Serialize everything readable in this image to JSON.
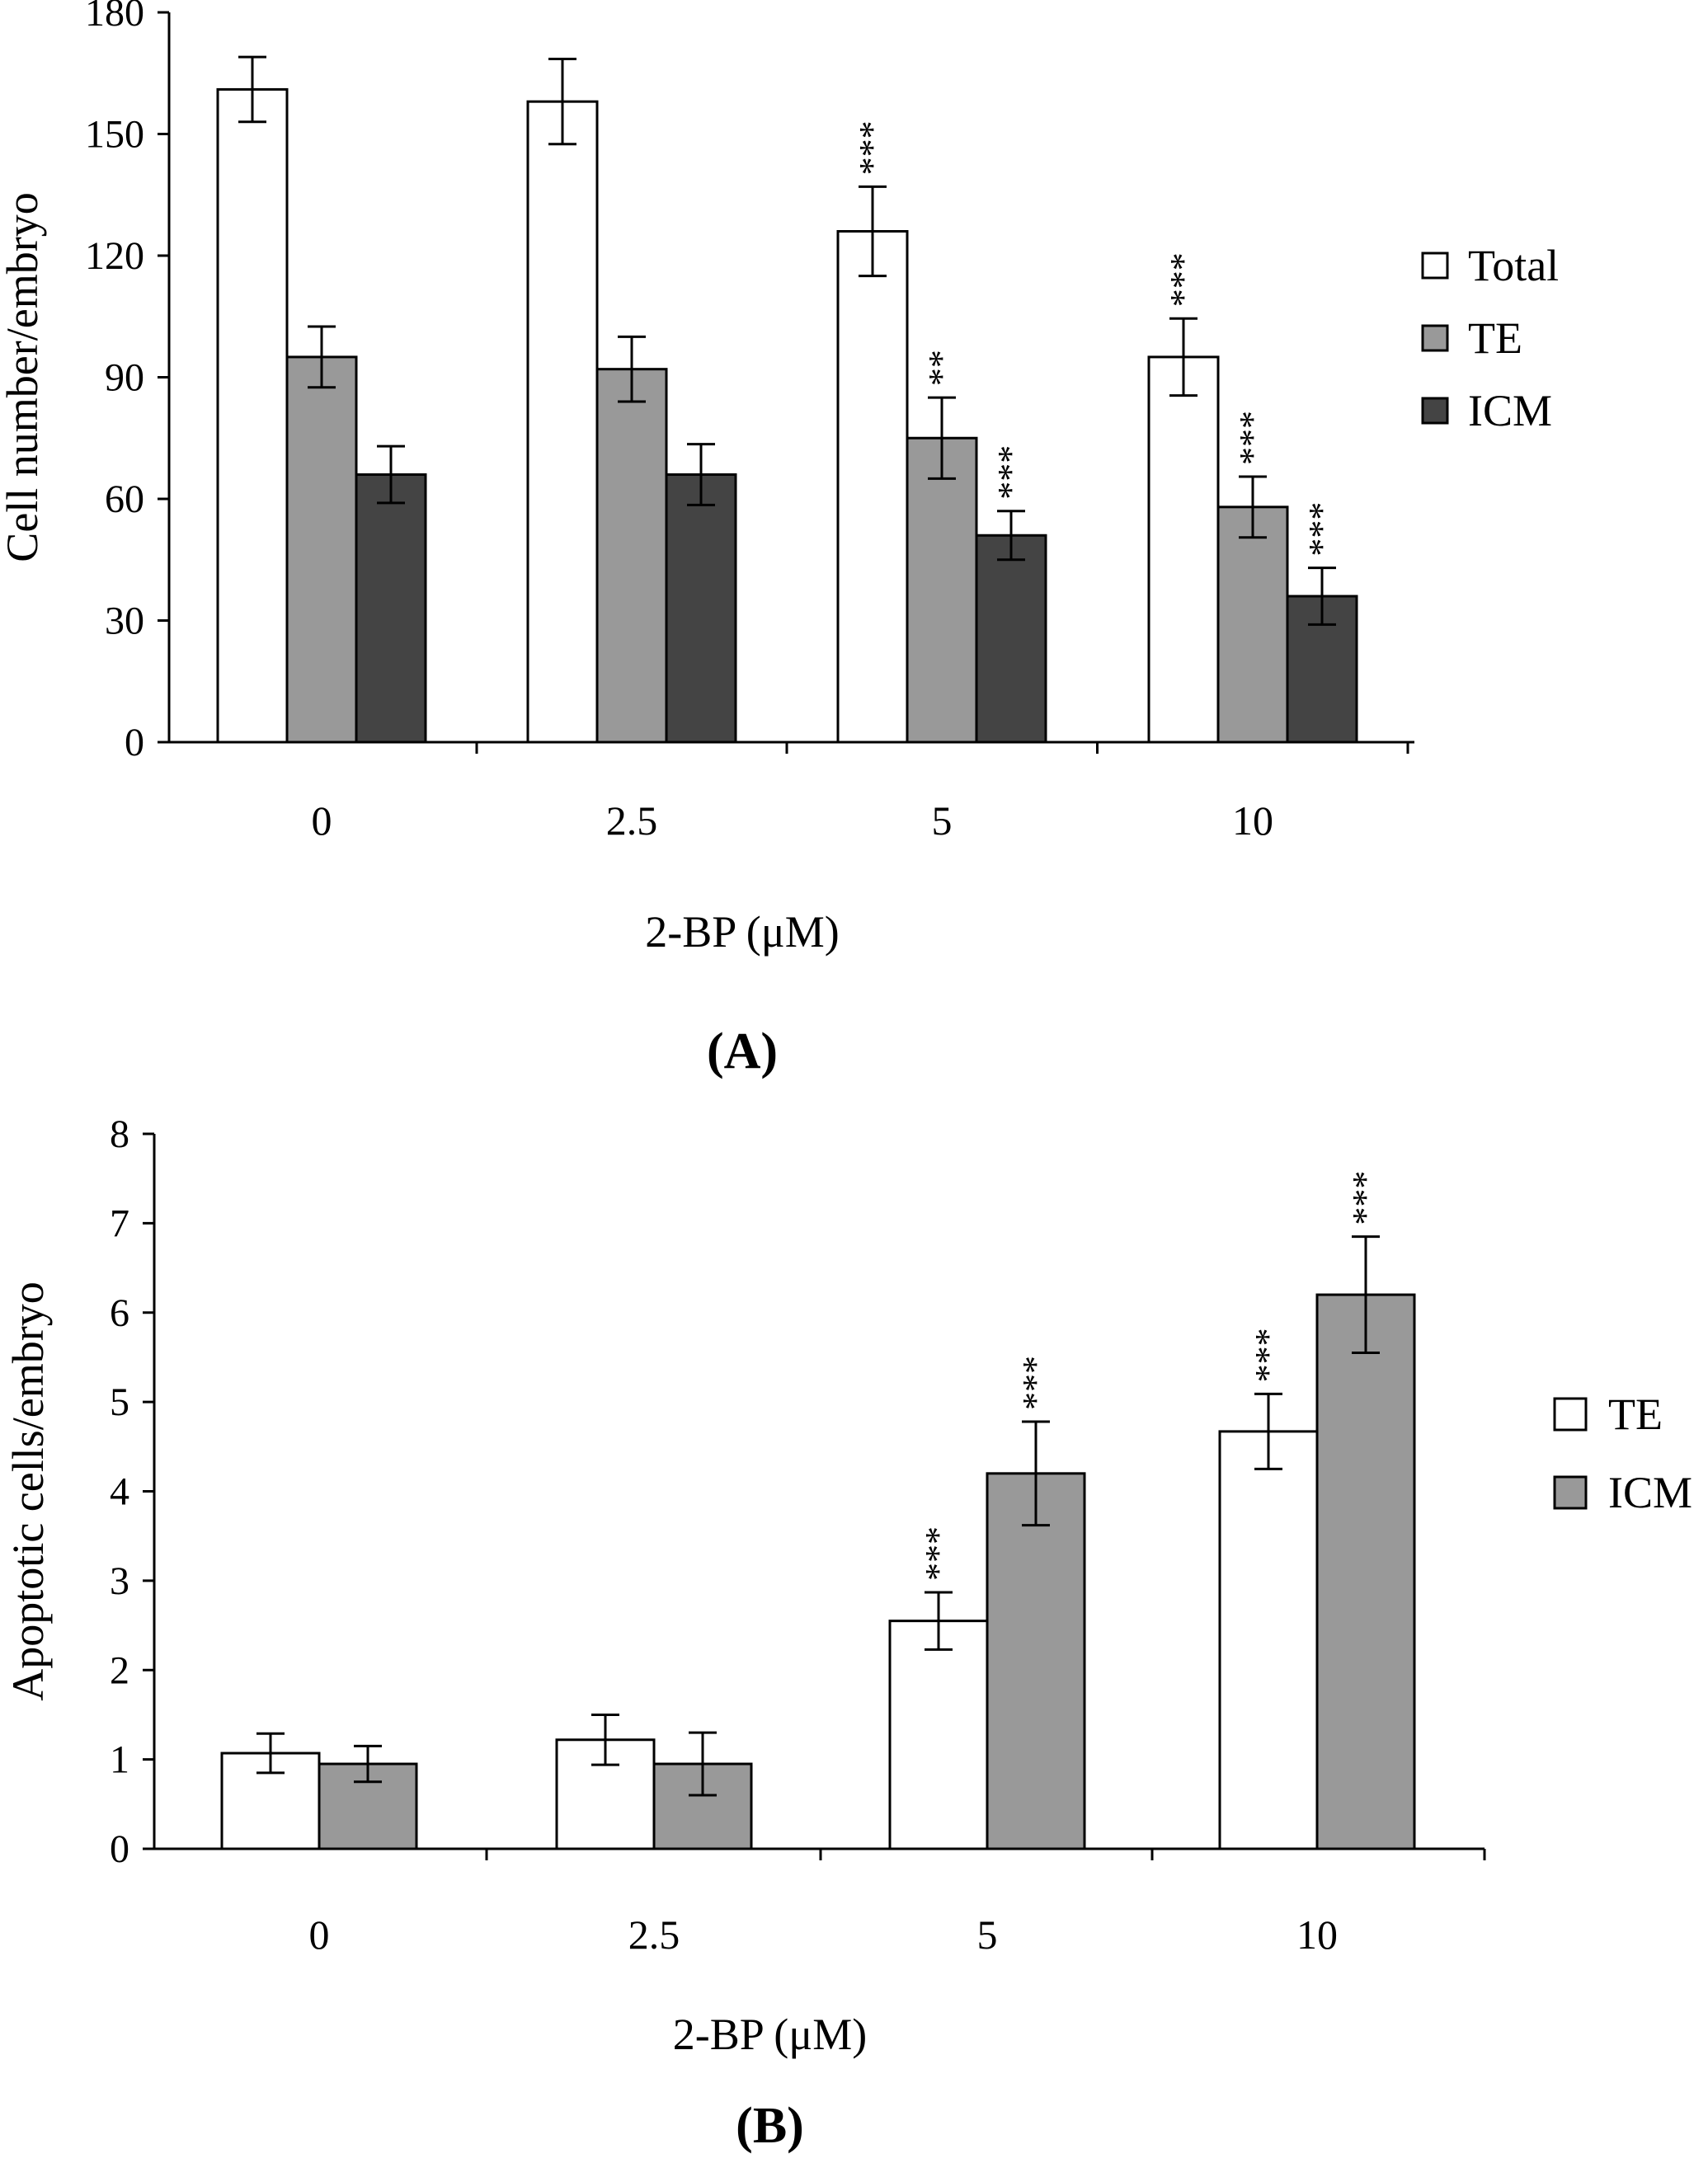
{
  "chart_data": [
    {
      "type": "bar",
      "panel_label": "(A)",
      "categories": [
        "0",
        "2.5",
        "5",
        "10"
      ],
      "xlabel": "2-BP (μM)",
      "ylabel": "Cell number/embryo",
      "ylim": [
        0,
        180
      ],
      "yticks": [
        "0",
        "30",
        "60",
        "90",
        "120",
        "150",
        "180"
      ],
      "legend": {
        "position": "right"
      },
      "series": [
        {
          "name": "Total",
          "color": "#ffffff",
          "values": [
            161,
            158,
            126,
            95
          ],
          "errors": [
            8,
            10.5,
            11,
            9.5
          ],
          "significance": [
            "",
            "",
            "***",
            "***"
          ]
        },
        {
          "name": "TE",
          "color": "#999999",
          "values": [
            95,
            92,
            75,
            58
          ],
          "errors": [
            7.5,
            8,
            10,
            7.5
          ],
          "significance": [
            "",
            "",
            "**",
            "***"
          ]
        },
        {
          "name": "ICM",
          "color": "#444444",
          "values": [
            66,
            66,
            51,
            36
          ],
          "errors": [
            7,
            7.5,
            6,
            7
          ],
          "significance": [
            "",
            "",
            "***",
            "***"
          ]
        }
      ]
    },
    {
      "type": "bar",
      "panel_label": "(B)",
      "categories": [
        "0",
        "2.5",
        "5",
        "10"
      ],
      "xlabel": "2-BP (μM)",
      "ylabel": "Apoptotic cells/embryo",
      "ylim": [
        0,
        8
      ],
      "yticks": [
        "0",
        "1",
        "2",
        "3",
        "4",
        "5",
        "6",
        "7",
        "8"
      ],
      "legend": {
        "position": "right"
      },
      "series": [
        {
          "name": "TE",
          "color": "#ffffff",
          "values": [
            1.07,
            1.22,
            2.55,
            4.67
          ],
          "errors": [
            0.22,
            0.28,
            0.32,
            0.42
          ],
          "significance": [
            "",
            "",
            "***",
            "***"
          ]
        },
        {
          "name": "ICM",
          "color": "#999999",
          "values": [
            0.95,
            0.95,
            4.2,
            6.2
          ],
          "errors": [
            0.2,
            0.35,
            0.58,
            0.65
          ],
          "significance": [
            "",
            "",
            "***",
            "***"
          ]
        }
      ]
    }
  ]
}
